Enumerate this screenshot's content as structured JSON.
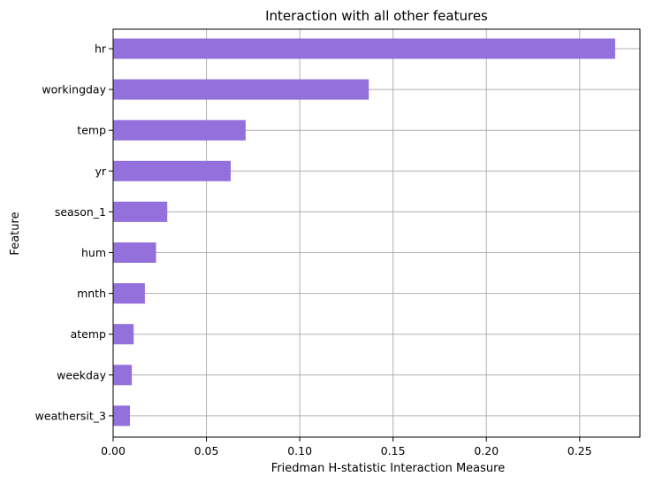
{
  "chart_data": {
    "type": "bar",
    "orientation": "horizontal",
    "title": "Interaction with all other features",
    "xlabel": "Friedman H-statistic Interaction Measure",
    "ylabel": "Feature",
    "categories": [
      "hr",
      "workingday",
      "temp",
      "yr",
      "season_1",
      "hum",
      "mnth",
      "atemp",
      "weekday",
      "weathersit_3"
    ],
    "values": [
      0.269,
      0.137,
      0.071,
      0.063,
      0.029,
      0.023,
      0.017,
      0.011,
      0.01,
      0.009
    ],
    "xlim": [
      0,
      0.2823
    ],
    "xticks": [
      0,
      0.05,
      0.1,
      0.15,
      0.2,
      0.25
    ],
    "xtick_labels": [
      "0.00",
      "0.05",
      "0.10",
      "0.15",
      "0.20",
      "0.25"
    ],
    "bar_color": "#9370db",
    "grid": true,
    "legend": "none"
  }
}
